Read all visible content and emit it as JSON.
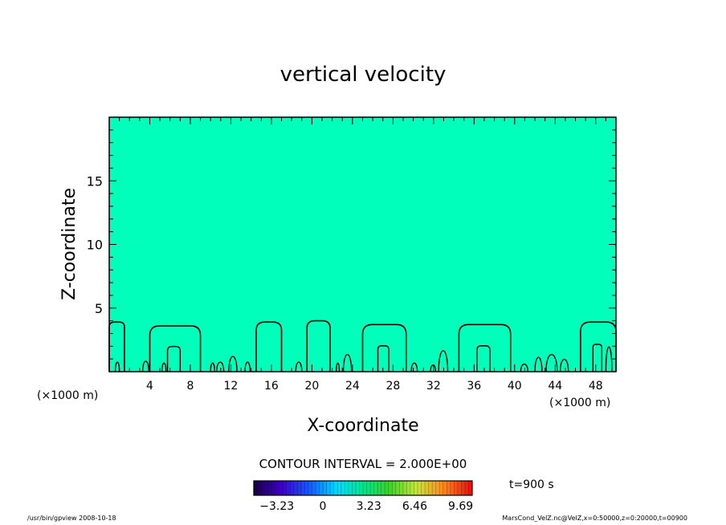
{
  "chart_data": {
    "type": "contour",
    "title": "vertical velocity",
    "xlabel": "X-coordinate",
    "ylabel": "Z-coordinate",
    "x_unit_left": "(×1000 m)",
    "x_unit_right": "(×1000 m)",
    "xlim": [
      0,
      50
    ],
    "ylim": [
      0,
      20
    ],
    "xticks": [
      "4",
      "8",
      "12",
      "16",
      "20",
      "24",
      "28",
      "32",
      "36",
      "40",
      "44",
      "48"
    ],
    "yticks": [
      "5",
      "10",
      "15"
    ],
    "fill_color": "#00ffbb",
    "contour_interval_label": "CONTOUR INTERVAL = 2.000E+00",
    "time_label": "t=900 s",
    "colorbar": {
      "labels": [
        "−3.23",
        "0",
        "3.23",
        "6.46",
        "9.69"
      ],
      "min": -4.85,
      "max": 10.5
    },
    "thermals": [
      {
        "x0": 0,
        "x1": 1.5,
        "h": 3.9
      },
      {
        "x0": 4.0,
        "x1": 9.0,
        "h": 3.6
      },
      {
        "x0": 14.5,
        "x1": 17.0,
        "h": 3.9
      },
      {
        "x0": 19.5,
        "x1": 21.8,
        "h": 4.0
      },
      {
        "x0": 25.0,
        "x1": 29.3,
        "h": 3.7
      },
      {
        "x0": 34.5,
        "x1": 39.6,
        "h": 3.7
      },
      {
        "x0": 46.5,
        "x1": 50,
        "h": 3.9
      }
    ]
  },
  "footer": {
    "left": "/usr/bin/gpview   2008-10-18",
    "right": "MarsCond_VelZ.nc@VelZ,x=0:50000,z=0:20000,t=00900"
  }
}
